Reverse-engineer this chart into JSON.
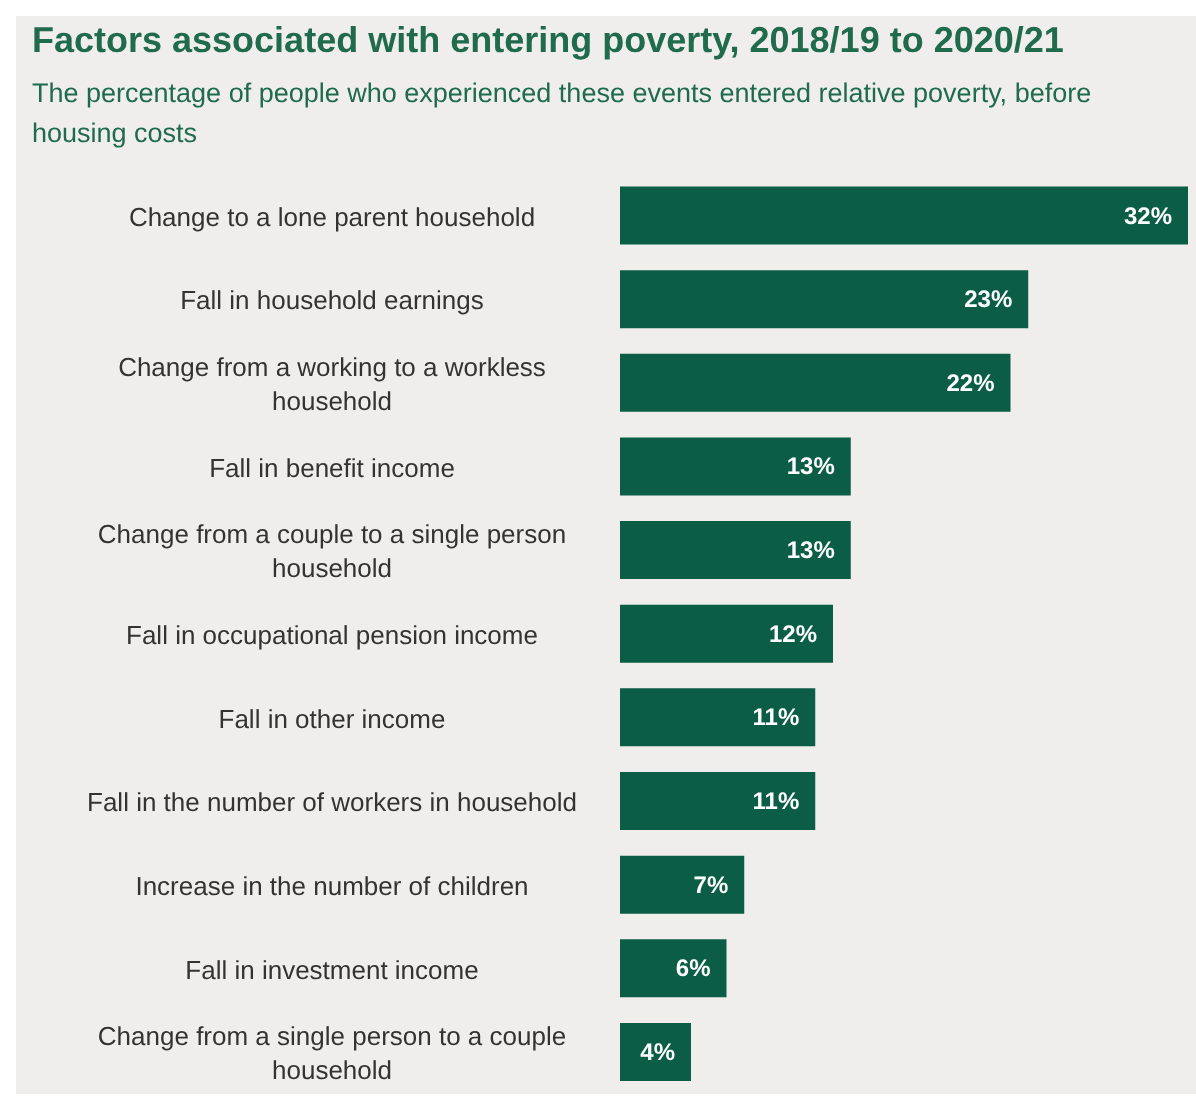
{
  "chart_data": {
    "type": "bar",
    "orientation": "horizontal",
    "title": "Factors associated with entering poverty, 2018/19 to 2020/21",
    "subtitle": "The percentage of people who experienced these events entered relative poverty, before housing costs",
    "categories": [
      "Change to a lone parent household",
      "Fall in household earnings",
      "Change from a working to a workless household",
      "Fall in benefit income",
      "Change from a couple to a single person household",
      "Fall in occupational pension income",
      "Fall in other income",
      "Fall in the number of workers in household",
      "Increase in the number of children",
      "Fall in investment income",
      "Change from a single person to a couple household"
    ],
    "values": [
      32,
      23,
      22,
      13,
      13,
      12,
      11,
      11,
      7,
      6,
      4
    ],
    "value_labels": [
      "32%",
      "23%",
      "22%",
      "13%",
      "13%",
      "12%",
      "11%",
      "11%",
      "7%",
      "6%",
      "4%"
    ],
    "color": "#0b5e45"
  }
}
